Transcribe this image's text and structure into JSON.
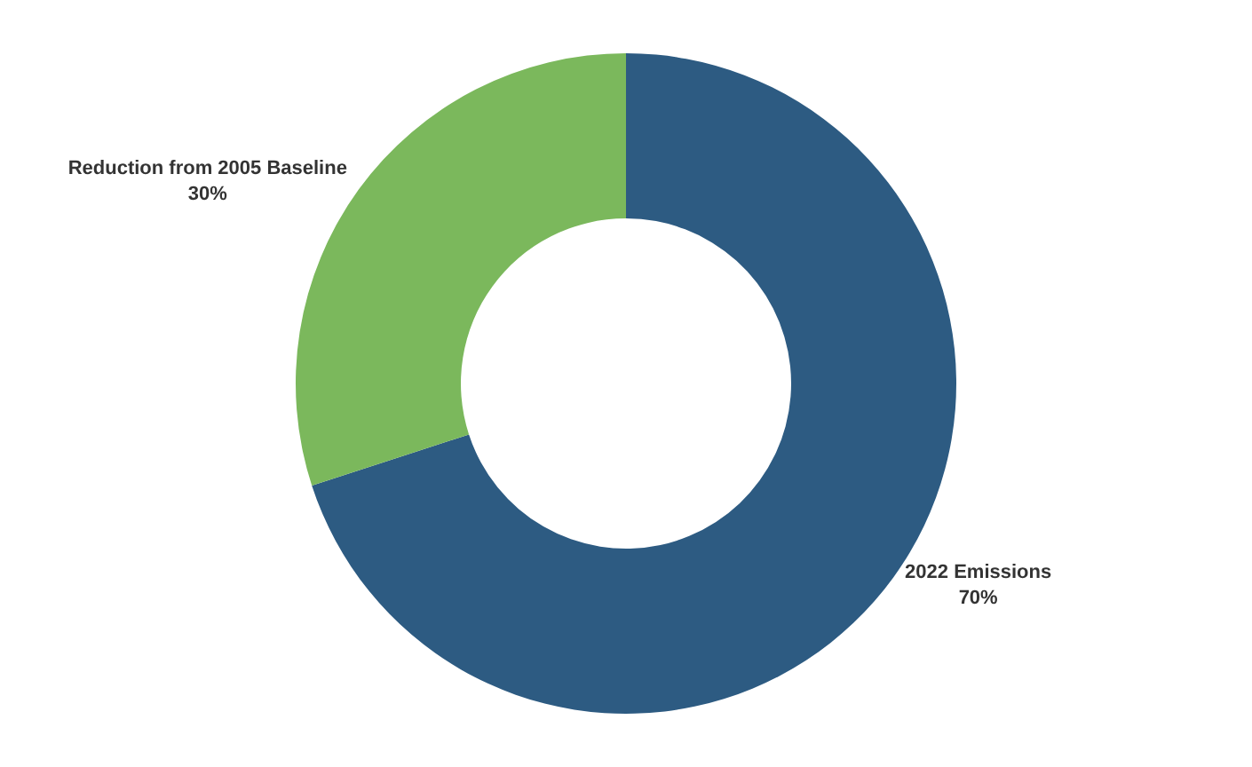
{
  "chart_data": {
    "type": "donut",
    "categories": [
      "2022 Emissions",
      "Reduction from 2005 Baseline"
    ],
    "values": [
      70,
      30
    ],
    "colors": [
      "#2d5b82",
      "#7bb85c"
    ],
    "value_labels": [
      "70%",
      "30%"
    ],
    "legend": false
  }
}
